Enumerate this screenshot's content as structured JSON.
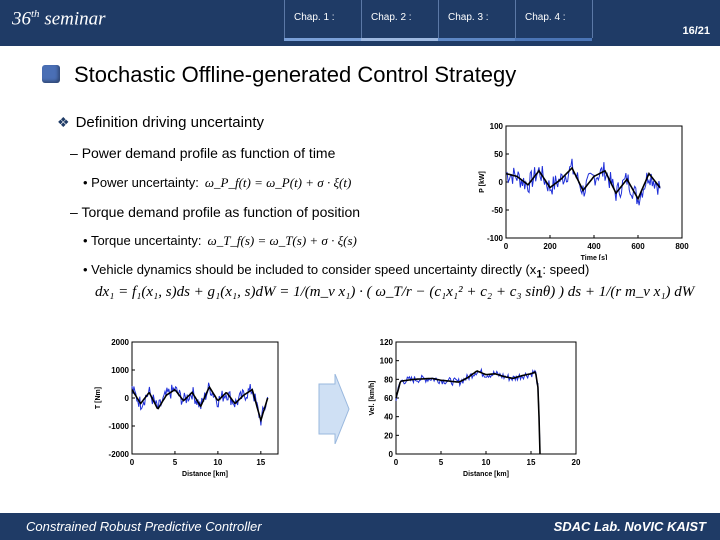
{
  "header": {
    "seminar_number": "36",
    "seminar_suffix": "th",
    "seminar_word": "seminar",
    "chapters": [
      "Chap. 1 :",
      "Chap. 2 :",
      "Chap. 3 :",
      "Chap. 4 :"
    ],
    "page": "16/21"
  },
  "slide": {
    "title": "Stochastic Offline-generated Control Strategy",
    "bullet": "Definition driving uncertainty",
    "sub1": "Power demand profile as function of time",
    "sub1_item": "Power uncertainty:",
    "sub1_eq": "ω_P_f(t) = ω_P(t) + σ · ξ(t)",
    "sub2": "Torque demand profile as function of position",
    "sub2_item": "Torque uncertainty:",
    "sub2_eq": "ω_T_f(s) = ω_T(s) + σ · ξ(s)",
    "sub3_item": "Vehicle dynamics should be included to consider speed uncertainty directly (x",
    "sub3_sub": "1",
    "sub3_tail": ": speed)",
    "equation": "dx₁ = f₁(x₁, s)ds + g₁(x₁, s)dW = 1/(m_v x₁) · ( ω_T/r − (c₁x₁² + c₂ + c₃ sinθ) ) ds + 1/(r m_v x₁) dW"
  },
  "footer": {
    "left": "Constrained Robust Predictive Controller",
    "right": "SDAC Lab. NoVIC KAIST"
  },
  "colors": {
    "primary": "#1f3b66",
    "series_noisy": "#1f2fd8",
    "series_nominal": "#000000"
  },
  "chart_data": [
    {
      "type": "line",
      "xlabel": "Time [s]",
      "ylabel": "P [kW]",
      "xlim": [
        0,
        800
      ],
      "ylim": [
        -100,
        100
      ],
      "xticks": [
        0,
        200,
        400,
        600,
        800
      ],
      "yticks": [
        100,
        50,
        0,
        -50,
        -100
      ],
      "series": [
        {
          "x": [
            0,
            50,
            100,
            150,
            200,
            250,
            300,
            350,
            400,
            450,
            500,
            550,
            600,
            650,
            700
          ],
          "values": [
            15,
            10,
            -5,
            20,
            -10,
            5,
            25,
            -15,
            10,
            20,
            -20,
            5,
            -30,
            15,
            -10
          ]
        }
      ]
    },
    {
      "type": "line",
      "xlabel": "Distance [km]",
      "ylabel": "T [Nm]",
      "xlim": [
        0,
        17
      ],
      "ylim": [
        -2000,
        2000
      ],
      "xticks": [
        0,
        5,
        10,
        15
      ],
      "yticks": [
        2000,
        1000,
        0,
        -1000,
        -2000
      ],
      "series": [
        {
          "x": [
            0,
            1,
            2,
            3,
            4,
            5,
            6,
            7,
            8,
            9,
            10,
            11,
            12,
            13,
            14,
            15,
            15.8
          ],
          "values": [
            300,
            -200,
            200,
            -400,
            100,
            300,
            -100,
            200,
            -300,
            400,
            -100,
            200,
            -200,
            100,
            300,
            -800,
            0
          ]
        }
      ]
    },
    {
      "type": "line",
      "xlabel": "Distance [km]",
      "ylabel": "Vel. [km/h]",
      "xlim": [
        0,
        20
      ],
      "ylim": [
        0,
        120
      ],
      "xticks": [
        0,
        5,
        10,
        15,
        20
      ],
      "yticks": [
        120,
        100,
        80,
        60,
        40,
        20,
        0
      ],
      "series": [
        {
          "x": [
            0,
            0.5,
            2,
            4,
            5,
            6,
            7,
            8,
            9,
            10,
            11,
            12,
            13,
            14,
            15,
            15.5,
            15.8,
            16
          ],
          "values": [
            60,
            78,
            80,
            81,
            79,
            78,
            77,
            82,
            89,
            85,
            86,
            83,
            81,
            84,
            86,
            88,
            70,
            0
          ]
        }
      ]
    }
  ]
}
